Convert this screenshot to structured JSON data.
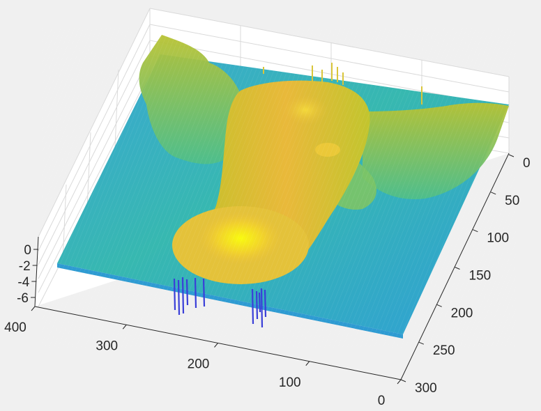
{
  "chart_data": {
    "type": "surface",
    "title": "",
    "xlabel": "",
    "ylabel": "",
    "zlabel": "",
    "colormap": "parula",
    "background": "#f0f0f0",
    "grid": true,
    "axes": {
      "x": {
        "ticks": [
          0,
          100,
          200,
          300,
          400
        ],
        "labels": [
          "0",
          "100",
          "200",
          "300",
          "400"
        ],
        "range": [
          0,
          400
        ]
      },
      "y": {
        "ticks": [
          0,
          50,
          100,
          150,
          200,
          250,
          300
        ],
        "labels": [
          "0",
          "50",
          "100",
          "150",
          "200",
          "250",
          "300"
        ],
        "range": [
          0,
          300
        ]
      },
      "z": {
        "ticks": [
          -6,
          -4,
          -2,
          0
        ],
        "labels": [
          "-6",
          "-4",
          "-2",
          "0"
        ],
        "range": [
          -7,
          4
        ]
      }
    },
    "surface_description": {
      "base_level": -1.0,
      "features": [
        {
          "kind": "body-ridge",
          "peak_z": 2.5
        },
        {
          "kind": "head-bump",
          "peak_z": 3.5
        },
        {
          "kind": "wings",
          "peak_z": 1.0
        },
        {
          "kind": "negative-spikes",
          "min_z": -6.5
        },
        {
          "kind": "positive-spikes",
          "max_z": 3.0
        }
      ]
    }
  }
}
